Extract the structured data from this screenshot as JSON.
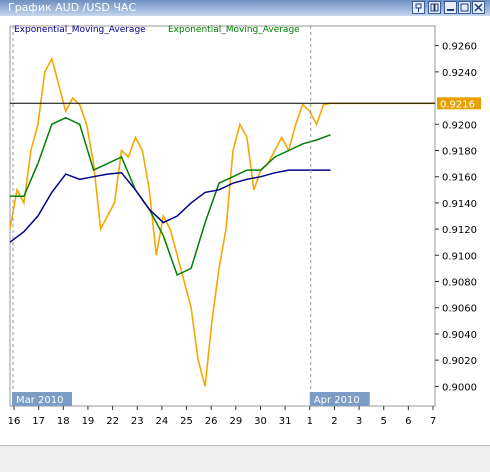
{
  "window": {
    "title": "График AUD /USD  ЧАС"
  },
  "legend": {
    "ema_fast": "Exponential_Moving_Average",
    "ema_slow": "Exponential_Moving_Average"
  },
  "colors": {
    "price": "#f5a800",
    "ema_fast": "#008000",
    "ema_slow": "#00008b",
    "price_label_bg": "#e8a000",
    "period_label_bg": "#7b9cc4",
    "hline": "#000000"
  },
  "chart_data": {
    "type": "line",
    "symbol": "AUD/USD",
    "timeframe": "H1",
    "current_price": "0.9216",
    "ylim": [
      0.8985,
      0.9275
    ],
    "y_ticks": [
      "0.9260",
      "0.9240",
      "0.9220",
      "0.9200",
      "0.9180",
      "0.9160",
      "0.9140",
      "0.9120",
      "0.9100",
      "0.9080",
      "0.9060",
      "0.9040",
      "0.9020",
      "0.9000"
    ],
    "period_labels": [
      "Mar 2010",
      "Apr 2010"
    ],
    "x_ticks": [
      "16",
      "17",
      "18",
      "19",
      "22",
      "23",
      "24",
      "25",
      "26",
      "29",
      "30",
      "31",
      "1",
      "2",
      "3",
      "5",
      "6",
      "7"
    ],
    "week_ticks": [
      "8",
      "15",
      "22",
      "29",
      "5"
    ],
    "series": [
      {
        "name": "AUD/USD",
        "x": [
          0,
          0.25,
          0.5,
          0.75,
          1,
          1.25,
          1.5,
          1.75,
          2,
          2.25,
          2.5,
          2.75,
          3,
          3.25,
          3.5,
          3.75,
          4,
          4.25,
          4.5,
          4.75,
          5,
          5.25,
          5.5,
          5.75,
          6,
          6.25,
          6.5,
          6.75,
          7,
          7.25,
          7.5,
          7.75,
          8,
          8.25,
          8.5,
          8.75,
          9,
          9.25,
          9.5,
          9.75,
          10,
          10.25,
          10.5,
          10.75,
          11,
          11.25,
          11.5,
          11.75,
          12,
          12.25,
          12.5,
          12.75,
          13,
          13.25,
          13.5,
          13.75,
          14,
          14.25,
          14.5,
          14.75,
          15,
          15.25
        ],
        "values": [
          0.912,
          0.915,
          0.914,
          0.918,
          0.92,
          0.924,
          0.925,
          0.923,
          0.921,
          0.922,
          0.9215,
          0.92,
          0.917,
          0.912,
          0.913,
          0.914,
          0.918,
          0.9175,
          0.919,
          0.918,
          0.915,
          0.91,
          0.913,
          0.912,
          0.91,
          0.908,
          0.906,
          0.902,
          0.9,
          0.905,
          0.909,
          0.912,
          0.918,
          0.92,
          0.919,
          0.915,
          0.9165,
          0.917,
          0.918,
          0.919,
          0.918,
          0.92,
          0.9215,
          0.921,
          0.92,
          0.9215,
          0.9216,
          0.9216,
          0.9216,
          0.9216,
          0.9216,
          0.9216,
          0.9216,
          0.9216,
          0.9216,
          0.9216,
          0.9216,
          0.9216,
          0.9216,
          0.9216,
          0.9216,
          0.9216
        ]
      },
      {
        "name": "Exponential_Moving_Average",
        "x": [
          0,
          0.5,
          1,
          1.5,
          2,
          2.5,
          3,
          3.5,
          4,
          4.5,
          5,
          5.5,
          6,
          6.5,
          7,
          7.5,
          8,
          8.5,
          9,
          9.5,
          10,
          10.5,
          11,
          11.5
        ],
        "values": [
          0.9145,
          0.9145,
          0.917,
          0.92,
          0.9205,
          0.92,
          0.9165,
          0.917,
          0.9175,
          0.915,
          0.9135,
          0.9115,
          0.9085,
          0.909,
          0.9125,
          0.9155,
          0.916,
          0.9165,
          0.9165,
          0.9175,
          0.918,
          0.9185,
          0.9188,
          0.9192
        ]
      },
      {
        "name": "Exponential_Moving_Average",
        "x": [
          0,
          0.5,
          1,
          1.5,
          2,
          2.5,
          3,
          3.5,
          4,
          4.5,
          5,
          5.5,
          6,
          6.5,
          7,
          7.5,
          8,
          8.5,
          9,
          9.5,
          10,
          10.5,
          11,
          11.5
        ],
        "values": [
          0.911,
          0.9118,
          0.913,
          0.9148,
          0.9162,
          0.9158,
          0.916,
          0.9162,
          0.9163,
          0.915,
          0.9135,
          0.9125,
          0.913,
          0.914,
          0.9148,
          0.915,
          0.9155,
          0.9158,
          0.916,
          0.9163,
          0.9165,
          0.9165,
          0.9165,
          0.9165
        ]
      }
    ]
  }
}
